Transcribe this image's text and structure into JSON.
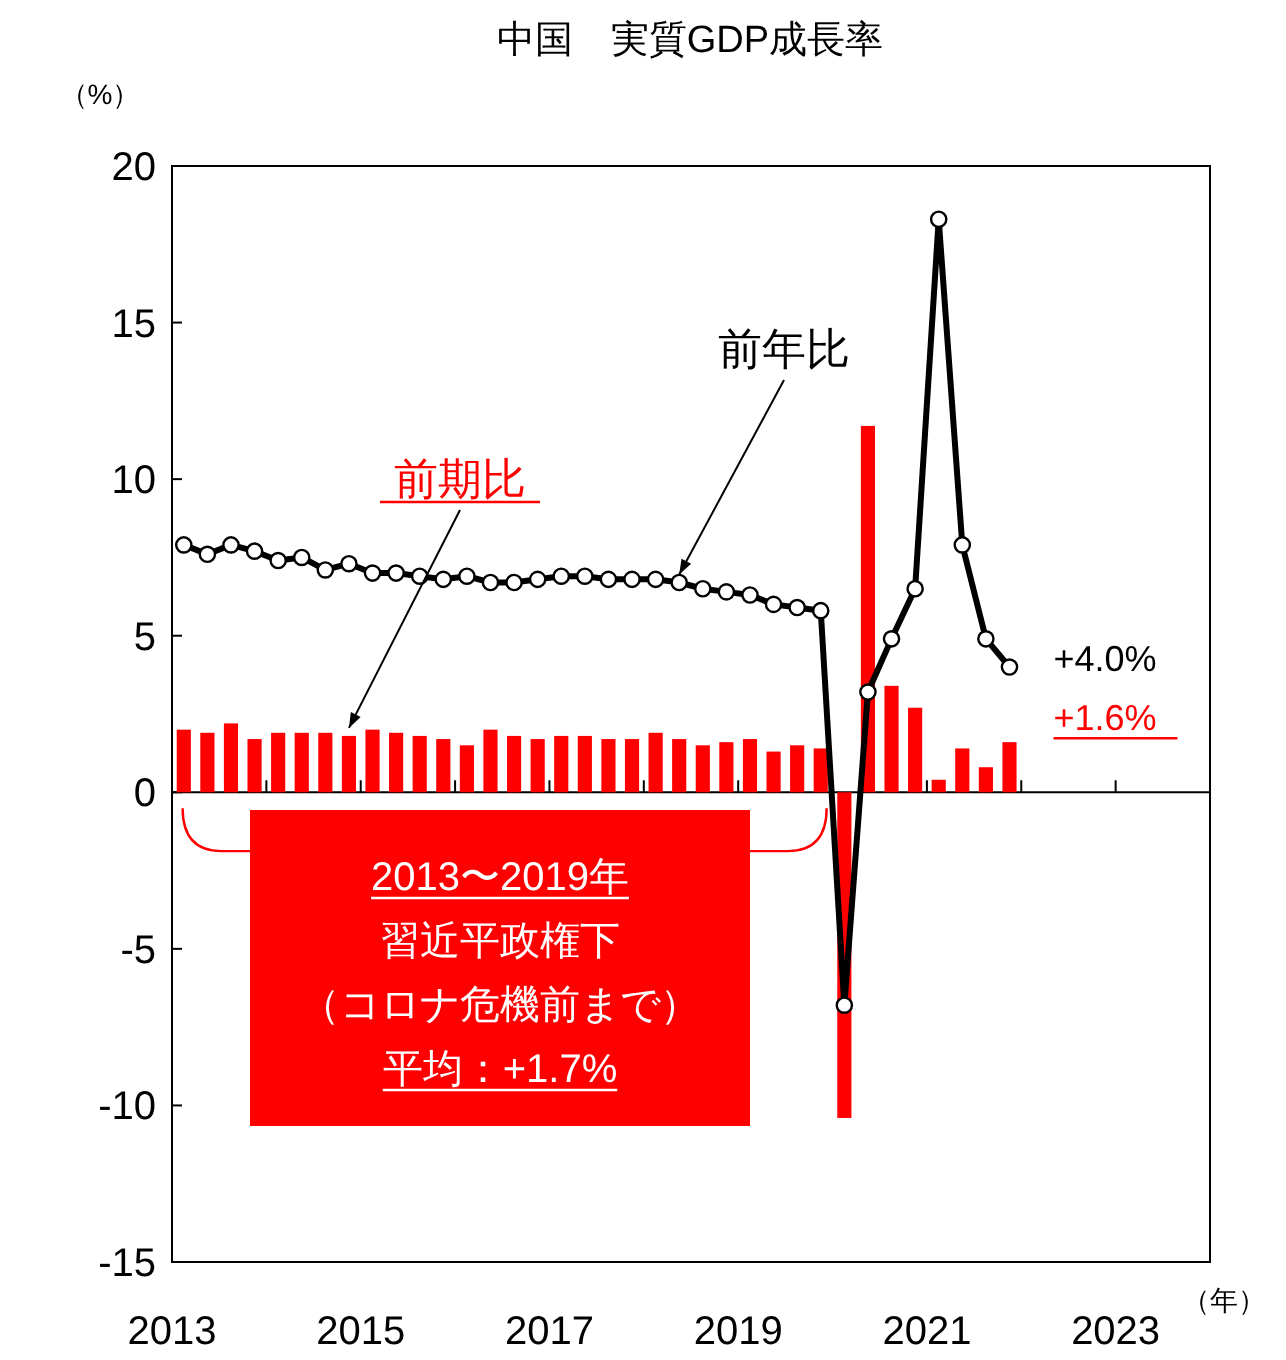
{
  "chart_data": {
    "type": "bar",
    "title": "中国　実質GDP成長率",
    "ylabel": "（%）",
    "xlabel": "（年）",
    "x": [
      2013.125,
      2013.375,
      2013.625,
      2013.875,
      2014.125,
      2014.375,
      2014.625,
      2014.875,
      2015.125,
      2015.375,
      2015.625,
      2015.875,
      2016.125,
      2016.375,
      2016.625,
      2016.875,
      2017.125,
      2017.375,
      2017.625,
      2017.875,
      2018.125,
      2018.375,
      2018.625,
      2018.875,
      2019.125,
      2019.375,
      2019.625,
      2019.875,
      2020.125,
      2020.375,
      2020.625,
      2020.875,
      2021.125,
      2021.375,
      2021.625,
      2021.875
    ],
    "series": [
      {
        "name": "前期比",
        "color": "#ff0000",
        "values": [
          2.0,
          1.9,
          2.2,
          1.7,
          1.9,
          1.9,
          1.9,
          1.8,
          2.0,
          1.9,
          1.8,
          1.7,
          1.5,
          2.0,
          1.8,
          1.7,
          1.8,
          1.8,
          1.7,
          1.7,
          1.9,
          1.7,
          1.5,
          1.6,
          1.7,
          1.3,
          1.5,
          1.4,
          -10.4,
          11.7,
          3.4,
          2.7,
          0.4,
          1.4,
          0.8,
          1.6
        ]
      },
      {
        "name": "前年比",
        "type": "line",
        "color": "#000000",
        "marker": "circle",
        "values": [
          7.9,
          7.6,
          7.9,
          7.7,
          7.4,
          7.5,
          7.1,
          7.3,
          7.0,
          7.0,
          6.9,
          6.8,
          6.9,
          6.7,
          6.7,
          6.8,
          6.9,
          6.9,
          6.8,
          6.8,
          6.8,
          6.7,
          6.5,
          6.4,
          6.3,
          6.0,
          5.9,
          5.8,
          -6.8,
          3.2,
          4.9,
          6.5,
          18.3,
          7.9,
          4.9,
          4.0
        ]
      }
    ],
    "xlim": [
      2013,
      2024
    ],
    "xticks": [
      2013,
      {
        "value": 2014,
        "label": null
      },
      2015,
      {
        "value": 2016,
        "label": null
      },
      2017,
      {
        "value": 2018,
        "label": null
      },
      2019,
      {
        "value": 2020,
        "label": null
      },
      2021,
      {
        "value": 2022,
        "label": null
      },
      2023
    ],
    "ylim": [
      -15,
      20
    ],
    "yticks": [
      -15,
      -10,
      -5,
      0,
      5,
      10,
      15,
      20
    ],
    "legend": false,
    "annotations": [
      {
        "text": "+4.0%",
        "x": 2021.875,
        "y": 4.0
      },
      {
        "text": "+1.6%",
        "x": 2021.875,
        "y": 1.6
      },
      "2013〜2019年",
      "習近平政権下",
      "（コロナ危機前まで）",
      "平均：+1.7%"
    ]
  }
}
